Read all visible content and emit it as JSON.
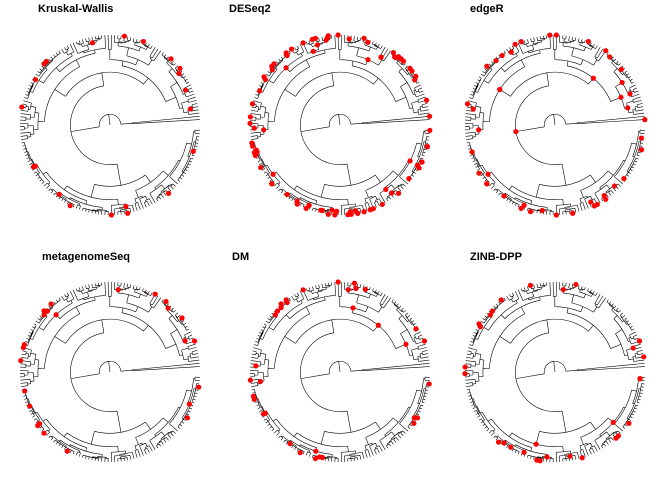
{
  "panels": [
    {
      "title": "Kruskal-Wallis"
    },
    {
      "title": "DESeq2"
    },
    {
      "title": "edgeR"
    },
    {
      "title": "metagenomeSeq"
    },
    {
      "title": "DM"
    },
    {
      "title": "ZINB-DPP"
    }
  ]
}
